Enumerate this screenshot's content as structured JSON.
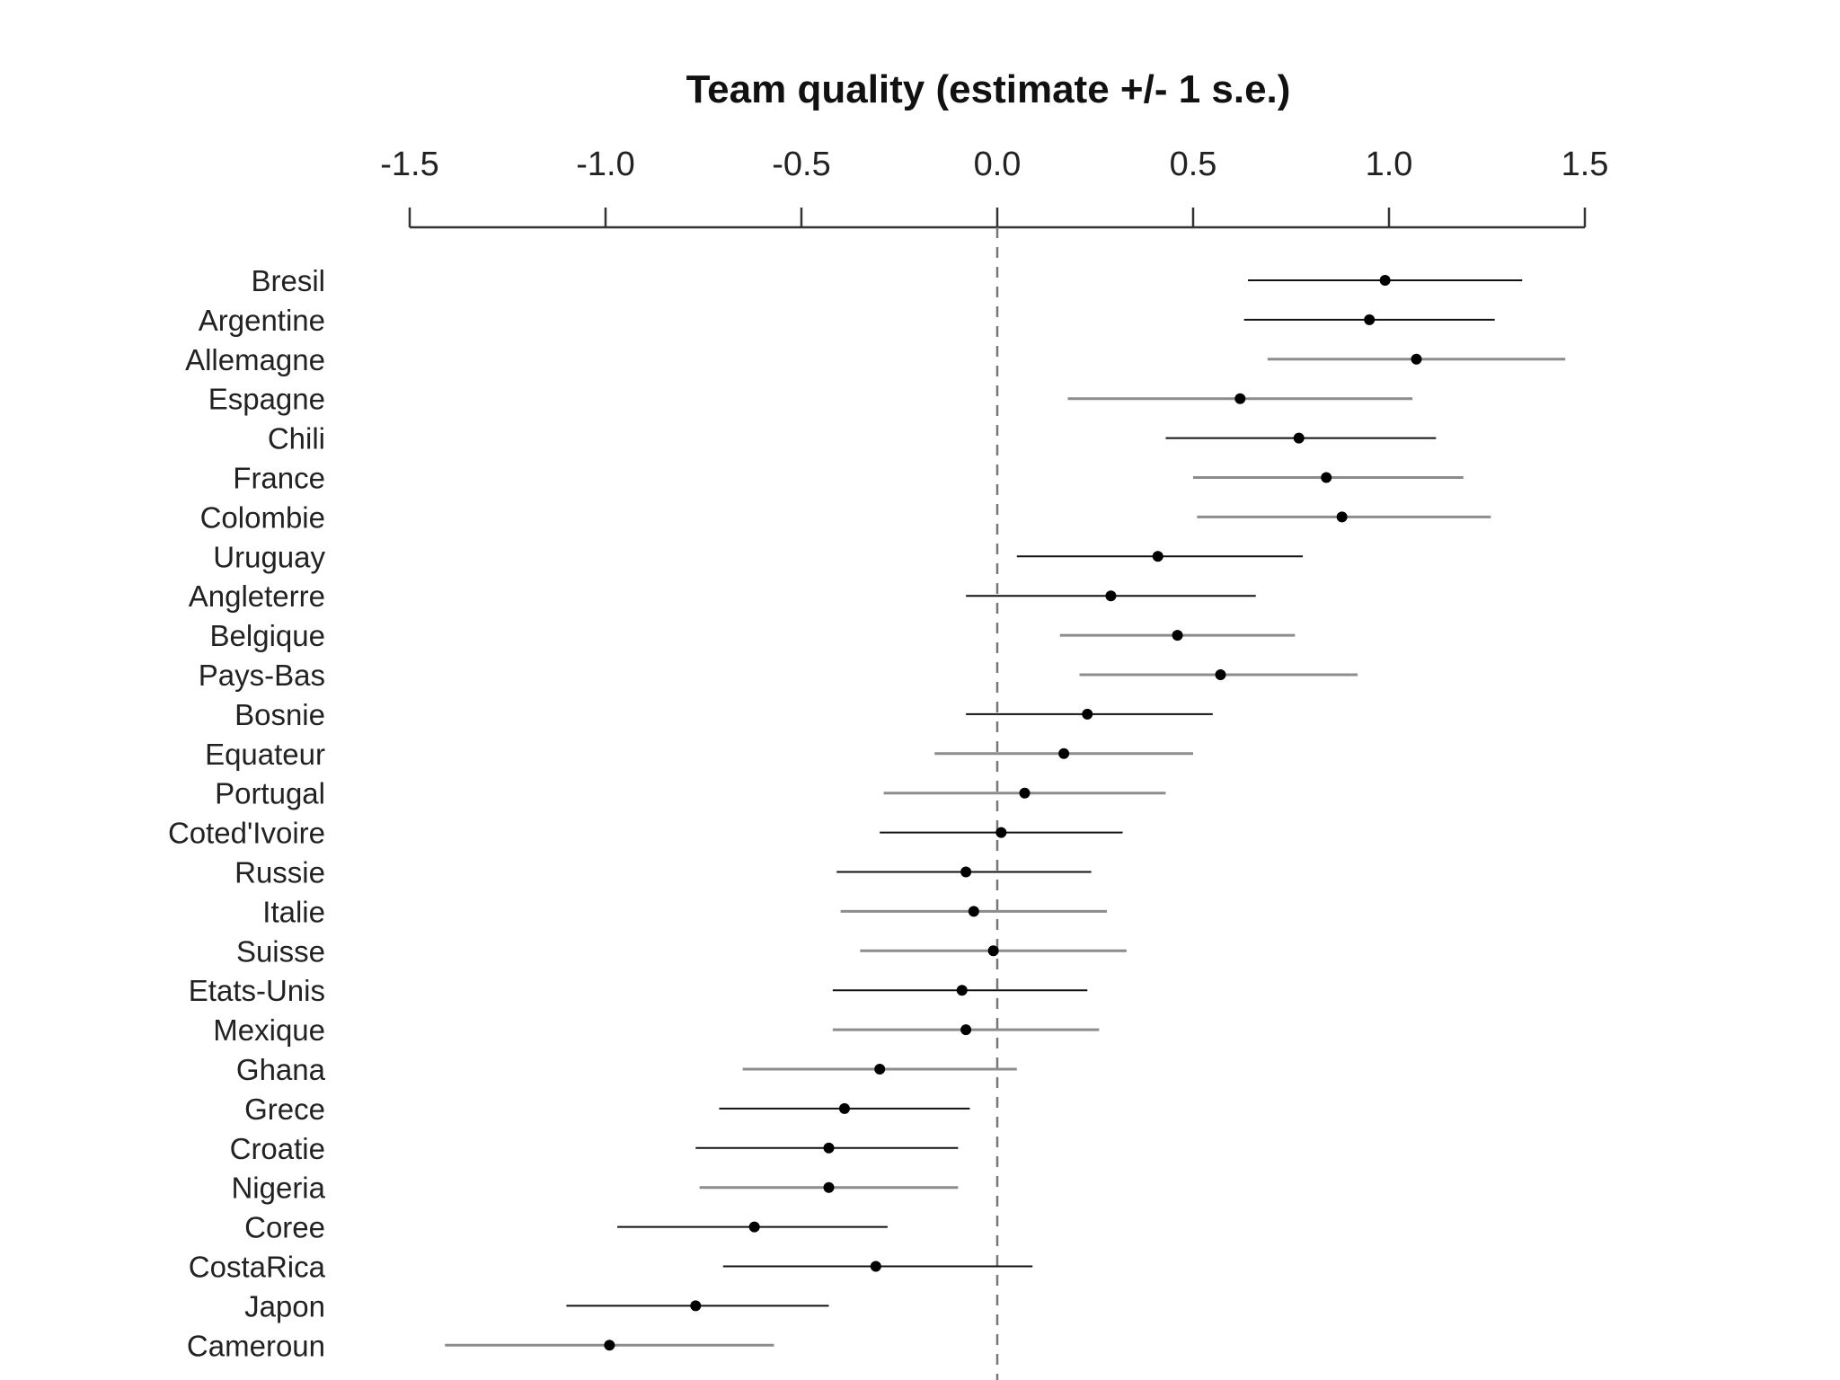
{
  "chart_data": {
    "type": "scatter",
    "title": "Team quality (estimate +/- 1 s.e.)",
    "xlabel": "",
    "ylabel": "",
    "xlim": [
      -1.5,
      1.5
    ],
    "x_ticks": [
      "-1.5",
      "-1.0",
      "-0.5",
      "0.0",
      "0.5",
      "1.0",
      "1.5"
    ],
    "reference_line": 0,
    "grid": false,
    "series": [
      {
        "name": "Team quality",
        "points": [
          {
            "team": "Bresil",
            "estimate": 0.99,
            "low": 0.64,
            "high": 1.34,
            "gray": false
          },
          {
            "team": "Argentine",
            "estimate": 0.95,
            "low": 0.63,
            "high": 1.27,
            "gray": false
          },
          {
            "team": "Allemagne",
            "estimate": 1.07,
            "low": 0.69,
            "high": 1.45,
            "gray": true
          },
          {
            "team": "Espagne",
            "estimate": 0.62,
            "low": 0.18,
            "high": 1.06,
            "gray": true
          },
          {
            "team": "Chili",
            "estimate": 0.77,
            "low": 0.43,
            "high": 1.12,
            "gray": false
          },
          {
            "team": "France",
            "estimate": 0.84,
            "low": 0.5,
            "high": 1.19,
            "gray": true
          },
          {
            "team": "Colombie",
            "estimate": 0.88,
            "low": 0.51,
            "high": 1.26,
            "gray": true
          },
          {
            "team": "Uruguay",
            "estimate": 0.41,
            "low": 0.05,
            "high": 0.78,
            "gray": false
          },
          {
            "team": "Angleterre",
            "estimate": 0.29,
            "low": -0.08,
            "high": 0.66,
            "gray": false
          },
          {
            "team": "Belgique",
            "estimate": 0.46,
            "low": 0.16,
            "high": 0.76,
            "gray": true
          },
          {
            "team": "Pays-Bas",
            "estimate": 0.57,
            "low": 0.21,
            "high": 0.92,
            "gray": true
          },
          {
            "team": "Bosnie",
            "estimate": 0.23,
            "low": -0.08,
            "high": 0.55,
            "gray": false
          },
          {
            "team": "Equateur",
            "estimate": 0.17,
            "low": -0.16,
            "high": 0.5,
            "gray": true
          },
          {
            "team": "Portugal",
            "estimate": 0.07,
            "low": -0.29,
            "high": 0.43,
            "gray": true
          },
          {
            "team": "Coted'Ivoire",
            "estimate": 0.01,
            "low": -0.3,
            "high": 0.32,
            "gray": false
          },
          {
            "team": "Russie",
            "estimate": -0.08,
            "low": -0.41,
            "high": 0.24,
            "gray": false
          },
          {
            "team": "Italie",
            "estimate": -0.06,
            "low": -0.4,
            "high": 0.28,
            "gray": true
          },
          {
            "team": "Suisse",
            "estimate": -0.01,
            "low": -0.35,
            "high": 0.33,
            "gray": true
          },
          {
            "team": "Etats-Unis",
            "estimate": -0.09,
            "low": -0.42,
            "high": 0.23,
            "gray": false
          },
          {
            "team": "Mexique",
            "estimate": -0.08,
            "low": -0.42,
            "high": 0.26,
            "gray": true
          },
          {
            "team": "Ghana",
            "estimate": -0.3,
            "low": -0.65,
            "high": 0.05,
            "gray": true
          },
          {
            "team": "Grece",
            "estimate": -0.39,
            "low": -0.71,
            "high": -0.07,
            "gray": false
          },
          {
            "team": "Croatie",
            "estimate": -0.43,
            "low": -0.77,
            "high": -0.1,
            "gray": false
          },
          {
            "team": "Nigeria",
            "estimate": -0.43,
            "low": -0.76,
            "high": -0.1,
            "gray": true
          },
          {
            "team": "Coree",
            "estimate": -0.62,
            "low": -0.97,
            "high": -0.28,
            "gray": false
          },
          {
            "team": "CostaRica",
            "estimate": -0.31,
            "low": -0.7,
            "high": 0.09,
            "gray": false
          },
          {
            "team": "Japon",
            "estimate": -0.77,
            "low": -1.1,
            "high": -0.43,
            "gray": false
          },
          {
            "team": "Cameroun",
            "estimate": -0.99,
            "low": -1.41,
            "high": -0.57,
            "gray": true
          }
        ]
      }
    ]
  }
}
